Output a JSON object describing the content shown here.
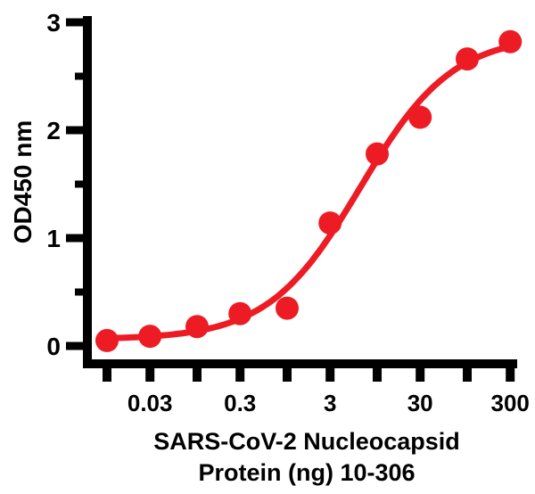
{
  "figure": {
    "background": "#ffffff",
    "axis_color": "#000000"
  },
  "chart_data": {
    "type": "scatter",
    "title": "",
    "ylabel": "OD450 nm",
    "xlabel_lines": [
      "SARS-CoV-2 Nucleocapsid",
      "Protein (ng) 10-306"
    ],
    "x_scale": "log",
    "xlim": [
      0.01,
      300
    ],
    "ylim": [
      0,
      3
    ],
    "grid": false,
    "legend": false,
    "x_axis": {
      "ticks": [
        {
          "value": 0.01,
          "label": ""
        },
        {
          "value": 0.03,
          "label": "0.03"
        },
        {
          "value": 0.1,
          "label": ""
        },
        {
          "value": 0.3,
          "label": "0.3"
        },
        {
          "value": 1,
          "label": ""
        },
        {
          "value": 3,
          "label": "3"
        },
        {
          "value": 10,
          "label": ""
        },
        {
          "value": 30,
          "label": "30"
        },
        {
          "value": 100,
          "label": ""
        },
        {
          "value": 300,
          "label": "300"
        }
      ]
    },
    "y_axis": {
      "major_ticks": [
        {
          "value": 0,
          "label": "0"
        },
        {
          "value": 1,
          "label": "1"
        },
        {
          "value": 2,
          "label": "2"
        },
        {
          "value": 3,
          "label": "3"
        }
      ],
      "minor_ticks": [
        0.5,
        1.5,
        2.5
      ]
    },
    "series": [
      {
        "name": "SARS-CoV-2 Nucleocapsid Protein 10-306",
        "color": "#ED1C24",
        "marker": "circle",
        "points": [
          {
            "x": 0.01,
            "y": 0.05
          },
          {
            "x": 0.03,
            "y": 0.09
          },
          {
            "x": 0.1,
            "y": 0.18
          },
          {
            "x": 0.3,
            "y": 0.3
          },
          {
            "x": 1,
            "y": 0.35
          },
          {
            "x": 3,
            "y": 1.14
          },
          {
            "x": 10,
            "y": 1.78
          },
          {
            "x": 30,
            "y": 2.12
          },
          {
            "x": 100,
            "y": 2.66
          },
          {
            "x": 300,
            "y": 2.82
          }
        ],
        "fit_curve": {
          "model": "4PL",
          "bottom": 0.06,
          "top": 2.88,
          "ec50": 6.5,
          "hill": 0.85
        }
      }
    ]
  }
}
